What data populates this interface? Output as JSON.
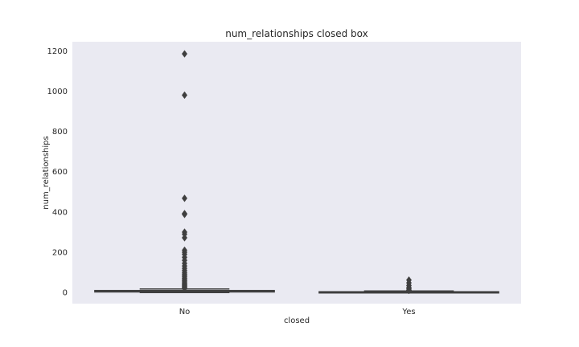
{
  "chart_data": {
    "type": "box",
    "title": "num_relationships closed box",
    "xlabel": "closed",
    "ylabel": "num_relationships",
    "categories": [
      "No",
      "Yes"
    ],
    "ylim": [
      -55,
      1245
    ],
    "yticks": [
      0,
      200,
      400,
      600,
      800,
      1000,
      1200
    ],
    "grid": false,
    "colors": {
      "plot_background": "#eaeaf2",
      "box_face": "#4c72b0",
      "line": "#3f3f3f",
      "text": "#262626"
    },
    "boxes": [
      {
        "category": "No",
        "whisker_low": 0,
        "q1": 3,
        "median": 5,
        "q3": 10,
        "whisker_high": 18,
        "outliers": [
          1185,
          980,
          468,
          392,
          388,
          300,
          290,
          272,
          210,
          200,
          190,
          175,
          160,
          145,
          132,
          120,
          110,
          100,
          92,
          85,
          78,
          71,
          65,
          59,
          53,
          48,
          43,
          38,
          34,
          30,
          26,
          22,
          20
        ]
      },
      {
        "category": "Yes",
        "whisker_low": 0,
        "q1": 1,
        "median": 2,
        "q3": 4,
        "whisker_high": 8,
        "outliers": [
          62,
          48,
          35,
          25,
          18,
          12,
          10
        ]
      }
    ]
  }
}
